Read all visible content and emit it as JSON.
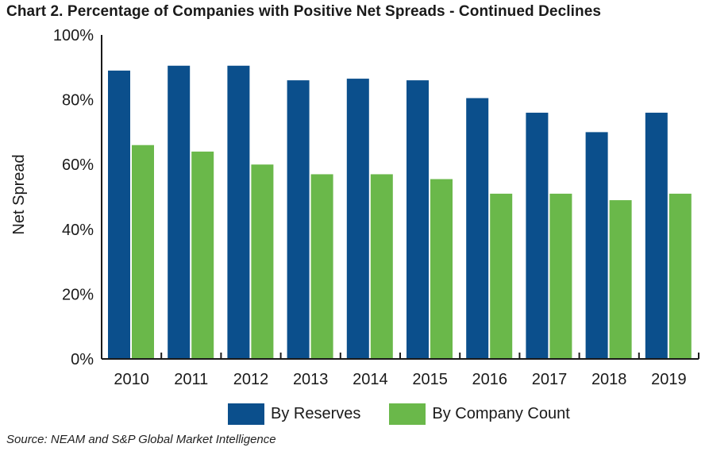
{
  "title": "Chart 2. Percentage of Companies with Positive Net Spreads - Continued Declines",
  "source": "Source: NEAM and S&P Global Market Intelligence",
  "colors": {
    "reserves": "#0b4f8c",
    "company_count": "#6ab84a",
    "axis": "#1a1a1a"
  },
  "chart_data": {
    "type": "bar",
    "title": "Chart 2. Percentage of Companies with Positive Net Spreads - Continued Declines",
    "xlabel": "",
    "ylabel": "Net Spread",
    "ylim": [
      0,
      100
    ],
    "yticks": [
      0,
      20,
      40,
      60,
      80,
      100
    ],
    "ytick_labels": [
      "0%",
      "20%",
      "40%",
      "60%",
      "80%",
      "100%"
    ],
    "grid": false,
    "legend_position": "bottom",
    "categories": [
      "2010",
      "2011",
      "2012",
      "2013",
      "2014",
      "2015",
      "2016",
      "2017",
      "2018",
      "2019"
    ],
    "series": [
      {
        "name": "By Reserves",
        "values": [
          89,
          90.5,
          90.5,
          86,
          86.5,
          86,
          80.5,
          76,
          70,
          76
        ]
      },
      {
        "name": "By Company Count",
        "values": [
          66,
          64,
          60,
          57,
          57,
          55.5,
          51,
          51,
          49,
          51
        ]
      }
    ]
  }
}
